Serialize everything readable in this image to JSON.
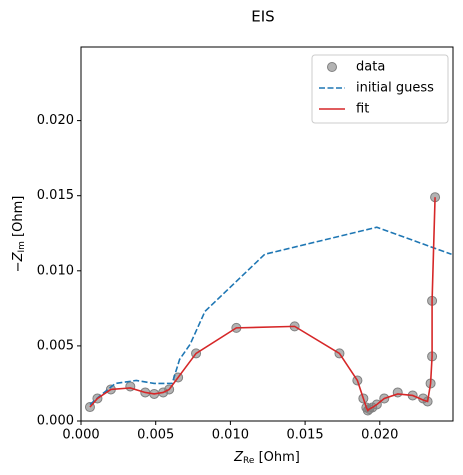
{
  "chart_data": {
    "type": "line",
    "title": "EIS",
    "xlabel": [
      "Z",
      "Re",
      " [Ohm]"
    ],
    "ylabel": [
      "−Z",
      "Im",
      " [Ohm]"
    ],
    "xlim": [
      0,
      0.0249
    ],
    "ylim": [
      0,
      0.0249
    ],
    "xticks": [
      {
        "value": 0,
        "label": "0.000"
      },
      {
        "value": 0.005,
        "label": "0.005"
      },
      {
        "value": 0.01,
        "label": "0.010"
      },
      {
        "value": 0.015,
        "label": "0.015"
      },
      {
        "value": 0.02,
        "label": "0.020"
      }
    ],
    "yticks": [
      {
        "value": 0,
        "label": "0.000"
      },
      {
        "value": 0.005,
        "label": "0.005"
      },
      {
        "value": 0.01,
        "label": "0.010"
      },
      {
        "value": 0.015,
        "label": "0.015"
      },
      {
        "value": 0.02,
        "label": "0.020"
      }
    ],
    "legend": "upper right",
    "series": [
      {
        "name": "data",
        "style": "scatter",
        "color": "#808080",
        "x": [
          0.0006,
          0.0011,
          0.002,
          0.0033,
          0.0043,
          0.0049,
          0.0055,
          0.0059,
          0.0065,
          0.0077,
          0.0104,
          0.0143,
          0.0173,
          0.0185,
          0.0189,
          0.0191,
          0.0192,
          0.0193,
          0.0195,
          0.0198,
          0.0203,
          0.0212,
          0.0222,
          0.0229,
          0.0232,
          0.0234,
          0.0235,
          0.0235,
          0.0237
        ],
        "values": [
          0.00093,
          0.0015,
          0.0021,
          0.0023,
          0.0019,
          0.0018,
          0.0019,
          0.0021,
          0.0029,
          0.0045,
          0.0062,
          0.0063,
          0.0045,
          0.0027,
          0.0015,
          0.0009,
          0.0007,
          0.0008,
          0.0009,
          0.0011,
          0.0015,
          0.0019,
          0.0017,
          0.0015,
          0.0013,
          0.0025,
          0.0043,
          0.008,
          0.0149
        ]
      },
      {
        "name": "initial guess",
        "style": "dashed",
        "color": "#1f77b4",
        "x": [
          0.0006,
          0.0013,
          0.0023,
          0.0037,
          0.0049,
          0.0061,
          0.0066,
          0.0073,
          0.0083,
          0.0123,
          0.0198,
          0.0248
        ],
        "values": [
          0.0011,
          0.0017,
          0.0025,
          0.0027,
          0.0025,
          0.0025,
          0.0041,
          0.0051,
          0.0073,
          0.0111,
          0.0129,
          0.0111
        ]
      },
      {
        "name": "fit",
        "style": "solid",
        "color": "#d62728",
        "x": [
          0.0006,
          0.0011,
          0.002,
          0.0033,
          0.0043,
          0.0049,
          0.0055,
          0.0059,
          0.0065,
          0.0077,
          0.0104,
          0.0143,
          0.0173,
          0.0185,
          0.0189,
          0.0191,
          0.0192,
          0.0193,
          0.0195,
          0.0198,
          0.0203,
          0.0212,
          0.0222,
          0.0229,
          0.0232,
          0.0234,
          0.0235,
          0.0235,
          0.0237
        ],
        "values": [
          0.00093,
          0.0015,
          0.0021,
          0.0022,
          0.0019,
          0.0018,
          0.0019,
          0.0021,
          0.0029,
          0.0045,
          0.0062,
          0.0063,
          0.0045,
          0.0027,
          0.0015,
          0.0009,
          0.0007,
          0.0008,
          0.0009,
          0.0011,
          0.0015,
          0.0018,
          0.0017,
          0.0014,
          0.0013,
          0.0025,
          0.0043,
          0.008,
          0.0149
        ]
      }
    ]
  }
}
